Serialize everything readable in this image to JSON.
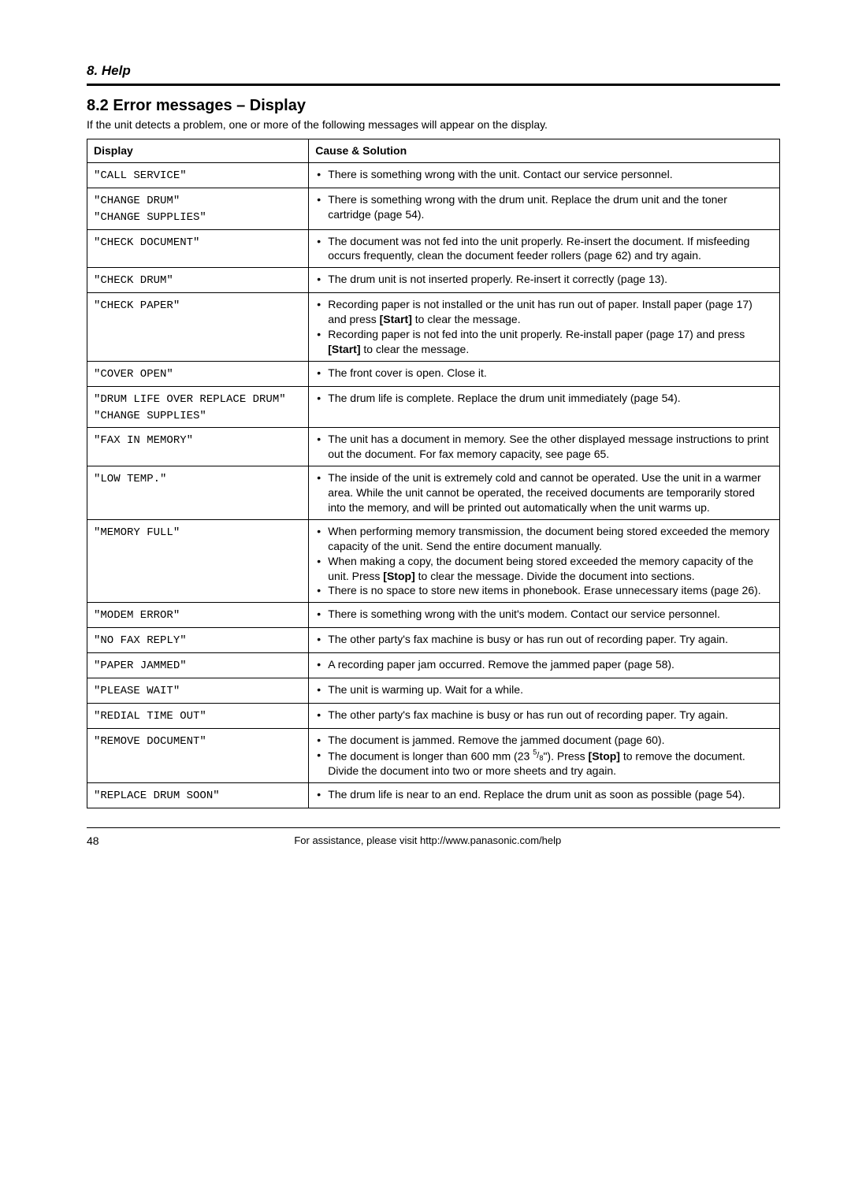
{
  "header": {
    "section_label": "8. Help"
  },
  "title": "8.2 Error messages – Display",
  "intro": "If the unit detects a problem, one or more of the following messages will appear on the display.",
  "table": {
    "headers": {
      "display": "Display",
      "cause": "Cause & Solution"
    },
    "rows": [
      {
        "display_lines": [
          "\"CALL SERVICE\""
        ],
        "items": [
          "There is something wrong with the unit. Contact our service personnel."
        ]
      },
      {
        "display_lines": [
          "\"CHANGE DRUM\"",
          "\"CHANGE SUPPLIES\""
        ],
        "items": [
          "There is something wrong with the drum unit. Replace the drum unit and the toner cartridge (page 54)."
        ]
      },
      {
        "display_lines": [
          "\"CHECK DOCUMENT\""
        ],
        "items": [
          "The document was not fed into the unit properly. Re-insert the document. If misfeeding occurs frequently, clean the document feeder rollers (page 62) and try again."
        ]
      },
      {
        "display_lines": [
          "\"CHECK DRUM\""
        ],
        "items": [
          "The drum unit is not inserted properly. Re-insert it correctly (page 13)."
        ]
      },
      {
        "display_lines": [
          "\"CHECK PAPER\""
        ],
        "items": [
          "Recording paper is not installed or the unit has run out of paper. Install paper (page 17) and press {Start} to clear the message.",
          "Recording paper is not fed into the unit properly. Re-install paper (page 17) and press {Start} to clear the message."
        ]
      },
      {
        "display_lines": [
          "\"COVER OPEN\""
        ],
        "items": [
          "The front cover is open. Close it."
        ]
      },
      {
        "display_lines": [
          "\"DRUM LIFE OVER REPLACE DRUM\"",
          "\"CHANGE SUPPLIES\""
        ],
        "items": [
          "The drum life is complete. Replace the drum unit immediately (page 54)."
        ]
      },
      {
        "display_lines": [
          "\"FAX IN MEMORY\""
        ],
        "items": [
          "The unit has a document in memory. See the other displayed message instructions to print out the document. For fax memory capacity, see page 65."
        ]
      },
      {
        "display_lines": [
          "\"LOW TEMP.\""
        ],
        "items": [
          "The inside of the unit is extremely cold and cannot be operated. Use the unit in a warmer area. While the unit cannot be operated, the received documents are temporarily stored into the memory, and will be printed out automatically when the unit warms up."
        ]
      },
      {
        "display_lines": [
          "\"MEMORY FULL\""
        ],
        "items": [
          "When performing memory transmission, the document being stored exceeded the memory capacity of the unit. Send the entire document manually.",
          "When making a copy, the document being stored exceeded the memory capacity of the unit. Press {Stop} to clear the message. Divide the document into sections.",
          "There is no space to store new items in phonebook. Erase unnecessary items (page 26)."
        ]
      },
      {
        "display_lines": [
          "\"MODEM ERROR\""
        ],
        "items": [
          "There is something wrong with the unit's modem. Contact our service personnel."
        ]
      },
      {
        "display_lines": [
          "\"NO FAX REPLY\""
        ],
        "items": [
          "The other party's fax machine is busy or has run out of recording paper. Try again."
        ]
      },
      {
        "display_lines": [
          "\"PAPER JAMMED\""
        ],
        "items": [
          "A recording paper jam occurred. Remove the jammed paper (page 58)."
        ]
      },
      {
        "display_lines": [
          "\"PLEASE WAIT\""
        ],
        "items": [
          "The unit is warming up. Wait for a while."
        ]
      },
      {
        "display_lines": [
          "\"REDIAL TIME OUT\""
        ],
        "items": [
          "The other party's fax machine is busy or has run out of recording paper. Try again."
        ]
      },
      {
        "display_lines": [
          "\"REMOVE DOCUMENT\""
        ],
        "items": [
          "The document is jammed. Remove the jammed document (page 60).",
          "The document is longer than 600 mm (23 {FRAC}\"). Press {Stop} to remove the document. Divide the document into two or more sheets and try again."
        ]
      },
      {
        "display_lines": [
          "\"REPLACE DRUM SOON\""
        ],
        "items": [
          "The drum life is near to an end. Replace the drum unit as soon as possible (page 54)."
        ]
      }
    ]
  },
  "keys": {
    "start": "[Start]",
    "stop": "[Stop]"
  },
  "fraction": {
    "num": "5",
    "den": "8"
  },
  "footer": {
    "page": "48",
    "assist": "For assistance, please visit http://www.panasonic.com/help"
  }
}
